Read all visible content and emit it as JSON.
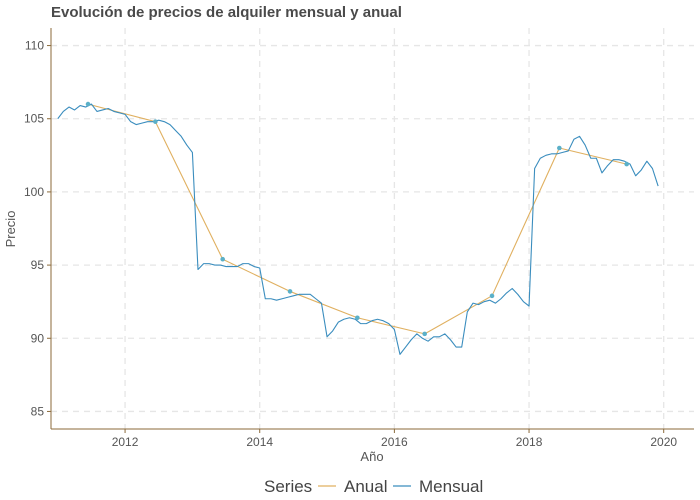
{
  "chart_data": {
    "type": "line",
    "title": "Evolución de precios de alquiler mensual y anual",
    "xlabel": "Año",
    "ylabel": "Precio",
    "xlim": [
      2010.9,
      2020.45
    ],
    "ylim": [
      83.8,
      111.2
    ],
    "x_ticks": [
      2012,
      2014,
      2016,
      2018,
      2020
    ],
    "y_ticks": [
      85,
      90,
      95,
      100,
      105,
      110
    ],
    "grid": true,
    "legend": {
      "title": "Series",
      "position": "bottom",
      "entries": [
        "Anual",
        "Mensual"
      ]
    },
    "colors": {
      "Anual": "#E0B060",
      "Mensual": "#3A8DBE",
      "points": "#5BB0C8",
      "axis": "#8B6A3A",
      "grid": "#e6e6e6"
    },
    "series": [
      {
        "name": "Anual",
        "x": [
          2011.45,
          2012.45,
          2013.45,
          2014.45,
          2015.45,
          2016.45,
          2017.45,
          2018.45,
          2019.45
        ],
        "y": [
          106.0,
          104.8,
          95.4,
          93.2,
          91.4,
          90.3,
          92.9,
          103.0,
          101.9
        ],
        "markers": true
      },
      {
        "name": "Mensual",
        "x": [
          2011.0,
          2011.083,
          2011.167,
          2011.25,
          2011.333,
          2011.417,
          2011.5,
          2011.583,
          2011.667,
          2011.75,
          2011.833,
          2011.917,
          2012.0,
          2012.083,
          2012.167,
          2012.25,
          2012.333,
          2012.417,
          2012.5,
          2012.583,
          2012.667,
          2012.75,
          2012.833,
          2012.917,
          2013.0,
          2013.083,
          2013.167,
          2013.25,
          2013.333,
          2013.417,
          2013.5,
          2013.583,
          2013.667,
          2013.75,
          2013.833,
          2013.917,
          2014.0,
          2014.083,
          2014.167,
          2014.25,
          2014.333,
          2014.417,
          2014.5,
          2014.583,
          2014.667,
          2014.75,
          2014.833,
          2014.917,
          2015.0,
          2015.083,
          2015.167,
          2015.25,
          2015.333,
          2015.417,
          2015.5,
          2015.583,
          2015.667,
          2015.75,
          2015.833,
          2015.917,
          2016.0,
          2016.083,
          2016.167,
          2016.25,
          2016.333,
          2016.417,
          2016.5,
          2016.583,
          2016.667,
          2016.75,
          2016.833,
          2016.917,
          2017.0,
          2017.083,
          2017.167,
          2017.25,
          2017.333,
          2017.417,
          2017.5,
          2017.583,
          2017.667,
          2017.75,
          2017.833,
          2017.917,
          2018.0,
          2018.083,
          2018.167,
          2018.25,
          2018.333,
          2018.417,
          2018.5,
          2018.583,
          2018.667,
          2018.75,
          2018.833,
          2018.917,
          2019.0,
          2019.083,
          2019.167,
          2019.25,
          2019.333,
          2019.417,
          2019.5,
          2019.583,
          2019.667,
          2019.75,
          2019.833,
          2019.917
        ],
        "y": [
          105.0,
          105.5,
          105.8,
          105.6,
          105.9,
          105.8,
          106.0,
          105.5,
          105.6,
          105.7,
          105.5,
          105.4,
          105.3,
          104.8,
          104.6,
          104.7,
          104.8,
          104.8,
          104.9,
          104.8,
          104.6,
          104.2,
          103.8,
          103.2,
          102.7,
          94.7,
          95.1,
          95.1,
          95.0,
          95.0,
          94.9,
          94.9,
          94.9,
          95.1,
          95.1,
          94.9,
          94.8,
          92.7,
          92.7,
          92.6,
          92.7,
          92.8,
          92.9,
          93.0,
          93.0,
          93.0,
          92.7,
          92.4,
          90.1,
          90.5,
          91.1,
          91.3,
          91.4,
          91.3,
          91.0,
          91.0,
          91.2,
          91.3,
          91.2,
          91.0,
          90.6,
          88.9,
          89.4,
          89.9,
          90.3,
          90.0,
          89.8,
          90.1,
          90.1,
          90.3,
          89.9,
          89.4,
          89.4,
          91.8,
          92.4,
          92.3,
          92.5,
          92.6,
          92.4,
          92.7,
          93.1,
          93.4,
          93.0,
          92.5,
          92.2,
          101.6,
          102.3,
          102.5,
          102.6,
          102.6,
          102.7,
          102.8,
          103.6,
          103.8,
          103.2,
          102.3,
          102.3,
          101.3,
          101.8,
          102.2,
          102.2,
          102.1,
          101.9,
          101.1,
          101.5,
          102.1,
          101.6,
          100.4
        ]
      }
    ]
  }
}
